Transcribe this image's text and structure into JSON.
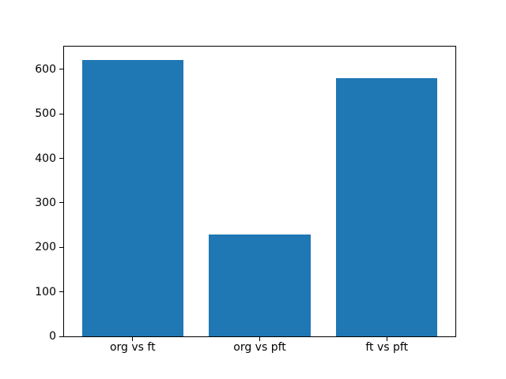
{
  "chart_data": {
    "type": "bar",
    "categories": [
      "org vs ft",
      "org vs pft",
      "ft vs pft"
    ],
    "values": [
      620,
      228,
      580
    ],
    "title": "",
    "xlabel": "",
    "ylabel": "",
    "ylim": [
      0,
      651
    ],
    "yticks": [
      0,
      100,
      200,
      300,
      400,
      500,
      600
    ],
    "bar_color": "#1f77b4",
    "bar_width": 0.8,
    "grid": false,
    "legend": null,
    "background_color": "#ffffff",
    "frame_color": "#000000"
  }
}
